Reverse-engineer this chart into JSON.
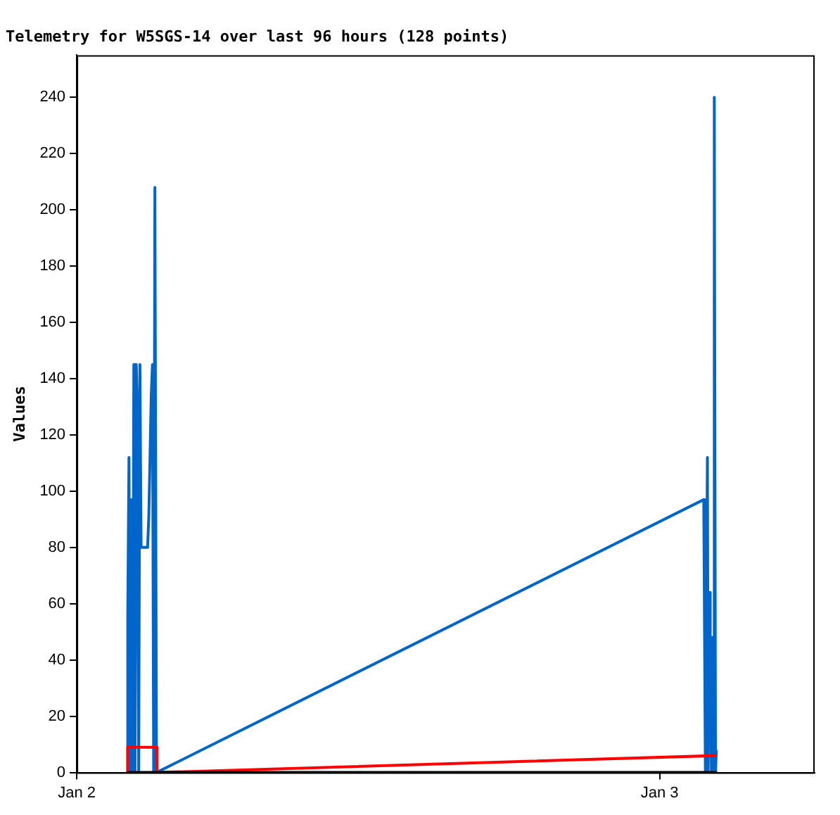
{
  "chart_data": {
    "type": "line",
    "title": "Telemetry for W5SGS-14 over last 96 hours (128 points)",
    "ylabel": "Values",
    "xlim": [
      "--01-02T00:00",
      "--01-03T06:23"
    ],
    "xticks": [
      {
        "value": "--01-02T00:00",
        "label": "Jan 2"
      },
      {
        "value": "--01-03T00:00",
        "label": "Jan 3"
      }
    ],
    "ylim": [
      0,
      255
    ],
    "yticks": [
      0,
      20,
      40,
      60,
      80,
      100,
      120,
      140,
      160,
      180,
      200,
      220,
      240
    ],
    "grid": false,
    "legend": false,
    "marker": "none",
    "line_style": "solid",
    "series": [
      {
        "color": "#000000",
        "x": [
          "--01-02T02:04",
          "--01-03T02:22"
        ],
        "values": [
          0,
          0
        ]
      },
      {
        "color": "#ff0000",
        "x": [
          "--01-02T02:04",
          "--01-02T02:06",
          "--01-02T03:17",
          "--01-02T03:18",
          "--01-03T02:20",
          "--01-03T02:22"
        ],
        "values": [
          0,
          9,
          9,
          0,
          6,
          6
        ]
      },
      {
        "color": "#0066cc",
        "x": [
          "--01-02T02:04",
          "--01-02T02:06",
          "--01-02T02:09",
          "--01-02T02:12",
          "--01-02T02:15",
          "--01-02T02:18",
          "--01-02T02:21",
          "--01-02T02:24",
          "--01-02T02:27",
          "--01-02T02:30",
          "--01-02T02:33",
          "--01-02T02:36",
          "--01-02T02:39",
          "--01-02T02:45",
          "--01-02T02:55",
          "--01-02T02:58",
          "--01-02T03:01",
          "--01-02T03:04",
          "--01-02T03:07",
          "--01-02T03:10",
          "--01-02T03:13",
          "--01-02T03:17",
          "--01-03T01:49",
          "--01-03T01:51",
          "--01-03T01:53",
          "--01-03T01:55",
          "--01-03T01:58",
          "--01-03T02:00",
          "--01-03T02:03",
          "--01-03T02:05",
          "--01-03T02:08",
          "--01-03T02:10",
          "--01-03T02:13",
          "--01-03T02:15",
          "--01-03T02:18",
          "--01-03T02:20",
          "--01-03T02:22"
        ],
        "values": [
          0,
          56,
          112,
          0,
          97,
          0,
          145,
          0,
          145,
          128,
          0,
          145,
          80,
          80,
          80,
          91,
          112,
          134,
          145,
          0,
          208,
          0,
          97,
          49,
          0,
          49,
          112,
          0,
          64,
          48,
          0,
          48,
          0,
          240,
          0,
          8,
          8
        ]
      }
    ]
  }
}
